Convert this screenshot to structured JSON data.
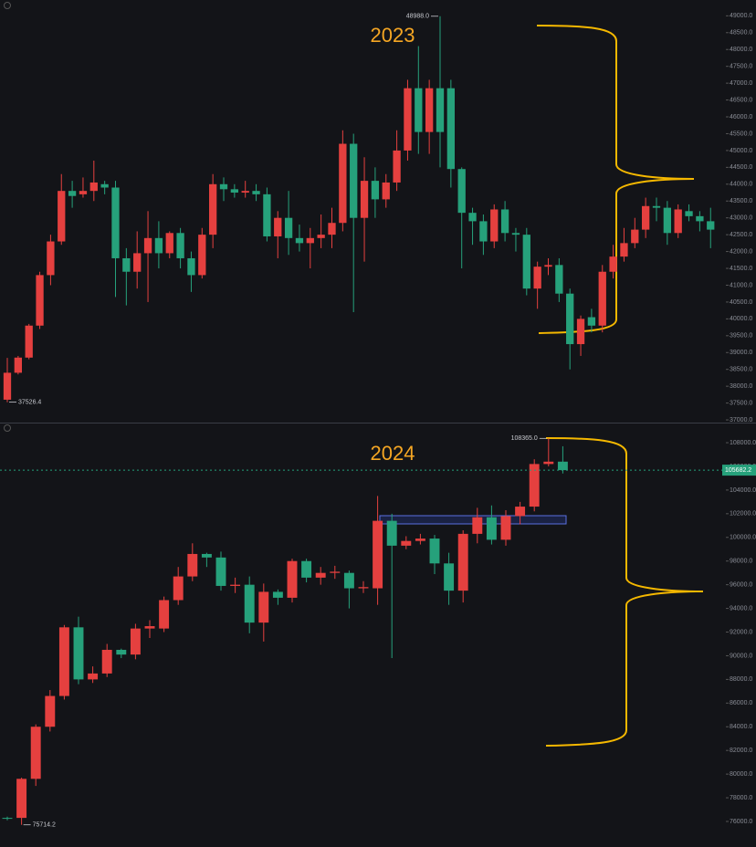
{
  "chart_data": [
    {
      "type": "candlestick",
      "title": "2023",
      "up_color": "#e5403f",
      "down_color": "#26a17b",
      "ylim": [
        36920,
        49470
      ],
      "yticks": [
        {
          "value": 37000,
          "label": "37000.0"
        },
        {
          "value": 37500,
          "label": "37500.0"
        },
        {
          "value": 38000,
          "label": "38000.0"
        },
        {
          "value": 38500,
          "label": "38500.0"
        },
        {
          "value": 39000,
          "label": "39000.0"
        },
        {
          "value": 39500,
          "label": "39500.0"
        },
        {
          "value": 40000,
          "label": "40000.0"
        },
        {
          "value": 40500,
          "label": "40500.0"
        },
        {
          "value": 41000,
          "label": "41000.0"
        },
        {
          "value": 41500,
          "label": "41500.0"
        },
        {
          "value": 42000,
          "label": "42000.0"
        },
        {
          "value": 42500,
          "label": "42500.0"
        },
        {
          "value": 43000,
          "label": "43000.0"
        },
        {
          "value": 43500,
          "label": "43500.0"
        },
        {
          "value": 44000,
          "label": "44000.0"
        },
        {
          "value": 44500,
          "label": "44500.0"
        },
        {
          "value": 45000,
          "label": "45000.0"
        },
        {
          "value": 45500,
          "label": "45500.0"
        },
        {
          "value": 46000,
          "label": "46000.0"
        },
        {
          "value": 46500,
          "label": "46500.0"
        },
        {
          "value": 47000,
          "label": "47000.0"
        },
        {
          "value": 47500,
          "label": "47500.0"
        },
        {
          "value": 48000,
          "label": "48000.0"
        },
        {
          "value": 48500,
          "label": "48500.0"
        },
        {
          "value": 49000,
          "label": "49000.0"
        }
      ],
      "open": [
        37600,
        38400,
        38850,
        39800,
        41300,
        42300,
        43800,
        43700,
        43800,
        44000,
        43900,
        41800,
        41400,
        41950,
        42400,
        41950,
        42550,
        41800,
        41300,
        42500,
        44000,
        43850,
        43750,
        43800,
        43700,
        42450,
        43000,
        42400,
        42250,
        42400,
        42500,
        42850,
        45200,
        43000,
        44100,
        43550,
        44050,
        45000,
        46850,
        45550,
        46850,
        46850,
        44450,
        43150,
        42900,
        42300,
        43250,
        42550,
        42500,
        40900,
        41550,
        41600,
        40750,
        39250,
        40050,
        39800,
        41400,
        41850,
        42250,
        42650,
        43350,
        43300,
        42550,
        43200,
        43050,
        42900
      ],
      "high": [
        38840,
        38900,
        39850,
        41400,
        42500,
        44300,
        44100,
        44200,
        44700,
        44100,
        44100,
        42100,
        42600,
        43200,
        42900,
        42600,
        42700,
        42000,
        42700,
        44300,
        44200,
        44000,
        44100,
        44000,
        43900,
        43200,
        43800,
        42800,
        42700,
        43100,
        43300,
        45600,
        45500,
        44800,
        44500,
        44300,
        45600,
        47100,
        48100,
        47100,
        48988,
        47100,
        44500,
        43300,
        43100,
        43400,
        43500,
        42700,
        42700,
        41700,
        41800,
        41800,
        40900,
        40100,
        40300,
        41600,
        42200,
        42700,
        43000,
        43600,
        43600,
        43500,
        43400,
        43400,
        43200,
        43300
      ],
      "low": [
        37526.4,
        38350,
        38800,
        39700,
        41000,
        42200,
        43300,
        43600,
        43500,
        43700,
        40650,
        40400,
        40900,
        40500,
        41500,
        41800,
        41500,
        40800,
        41200,
        42100,
        43500,
        43600,
        43600,
        43500,
        42300,
        41800,
        41900,
        42000,
        41500,
        42100,
        42100,
        42600,
        40200,
        41700,
        43000,
        43300,
        43800,
        44700,
        44900,
        44900,
        44500,
        43900,
        41500,
        42200,
        41900,
        42100,
        42300,
        42000,
        40700,
        40300,
        41300,
        40500,
        38500,
        38900,
        39600,
        39600,
        41200,
        41700,
        42100,
        42400,
        42900,
        42200,
        42400,
        42900,
        42600,
        42100
      ],
      "close": [
        38400,
        38850,
        39800,
        41300,
        42300,
        43800,
        43650,
        43800,
        44050,
        43900,
        41800,
        41400,
        41950,
        42400,
        41950,
        42550,
        41800,
        41300,
        42500,
        44000,
        43850,
        43750,
        43800,
        43700,
        42450,
        43000,
        42400,
        42250,
        42400,
        42500,
        42850,
        45200,
        43000,
        44100,
        43550,
        44050,
        45000,
        46850,
        45550,
        46850,
        45550,
        44450,
        43150,
        42900,
        42300,
        43250,
        42550,
        42500,
        40900,
        41550,
        41600,
        40750,
        39250,
        40000,
        39800,
        41400,
        41850,
        42250,
        42650,
        43350,
        43300,
        42550,
        43250,
        43050,
        42900,
        42650
      ],
      "high_label": "48988.0",
      "low_label": "37526.4"
    },
    {
      "type": "candlestick",
      "title": "2024",
      "up_color": "#e5403f",
      "down_color": "#26a17b",
      "ylim": [
        73840,
        109700
      ],
      "yticks": [
        {
          "value": 76000,
          "label": "76000.0"
        },
        {
          "value": 78000,
          "label": "78000.0"
        },
        {
          "value": 80000,
          "label": "80000.0"
        },
        {
          "value": 82000,
          "label": "82000.0"
        },
        {
          "value": 84000,
          "label": "84000.0"
        },
        {
          "value": 86000,
          "label": "86000.0"
        },
        {
          "value": 88000,
          "label": "88000.0"
        },
        {
          "value": 90000,
          "label": "90000.0"
        },
        {
          "value": 92000,
          "label": "92000.0"
        },
        {
          "value": 94000,
          "label": "94000.0"
        },
        {
          "value": 96000,
          "label": "96000.0"
        },
        {
          "value": 98000,
          "label": "98000.0"
        },
        {
          "value": 100000,
          "label": "100000.0"
        },
        {
          "value": 102000,
          "label": "102000.0"
        },
        {
          "value": 104000,
          "label": "104000.0"
        },
        {
          "value": 106000,
          "label": "106000.0"
        },
        {
          "value": 108000,
          "label": "108000.0"
        }
      ],
      "open": [
        76300,
        76300,
        79600,
        84000,
        86600,
        92400,
        88000,
        88500,
        90500,
        90100,
        92300,
        92300,
        94700,
        96700,
        98600,
        98300,
        95900,
        96000,
        92800,
        95400,
        94900,
        98000,
        96600,
        97000,
        97000,
        95700,
        95700,
        101400,
        99300,
        99700,
        99900,
        97800,
        95500,
        100300,
        101700,
        99800,
        101800,
        102600,
        106200,
        106400
      ],
      "high": [
        76400,
        79700,
        84200,
        87100,
        92600,
        93300,
        89100,
        91000,
        90600,
        92700,
        93000,
        95000,
        97500,
        99500,
        98700,
        98800,
        96600,
        96700,
        96100,
        95600,
        98200,
        98200,
        97500,
        97600,
        97200,
        96300,
        103500,
        102000,
        100100,
        100300,
        100200,
        98700,
        100600,
        102500,
        102700,
        102300,
        103000,
        106600,
        108365,
        107700
      ],
      "low": [
        76100,
        75714.2,
        79000,
        83600,
        86300,
        87600,
        87700,
        88200,
        89800,
        89700,
        91500,
        92000,
        94300,
        96300,
        97500,
        95500,
        95300,
        91900,
        91200,
        94300,
        94500,
        96200,
        96000,
        96500,
        94000,
        95300,
        94300,
        89800,
        99000,
        99400,
        96900,
        94300,
        94500,
        99500,
        99400,
        99300,
        101100,
        102200,
        106000,
        105400
      ],
      "close": [
        76250,
        79600,
        84000,
        86600,
        92400,
        88000,
        88500,
        90500,
        90100,
        92300,
        92500,
        94700,
        96700,
        98600,
        98300,
        95900,
        96000,
        92800,
        95400,
        94900,
        98000,
        96600,
        97000,
        97100,
        95700,
        95800,
        101400,
        99300,
        99700,
        99900,
        97800,
        95500,
        100300,
        101700,
        99800,
        101800,
        102600,
        106200,
        106400,
        105682.2
      ],
      "high_label": "108365.0",
      "low_label": "75714.2",
      "last_label": "105682.2"
    }
  ]
}
